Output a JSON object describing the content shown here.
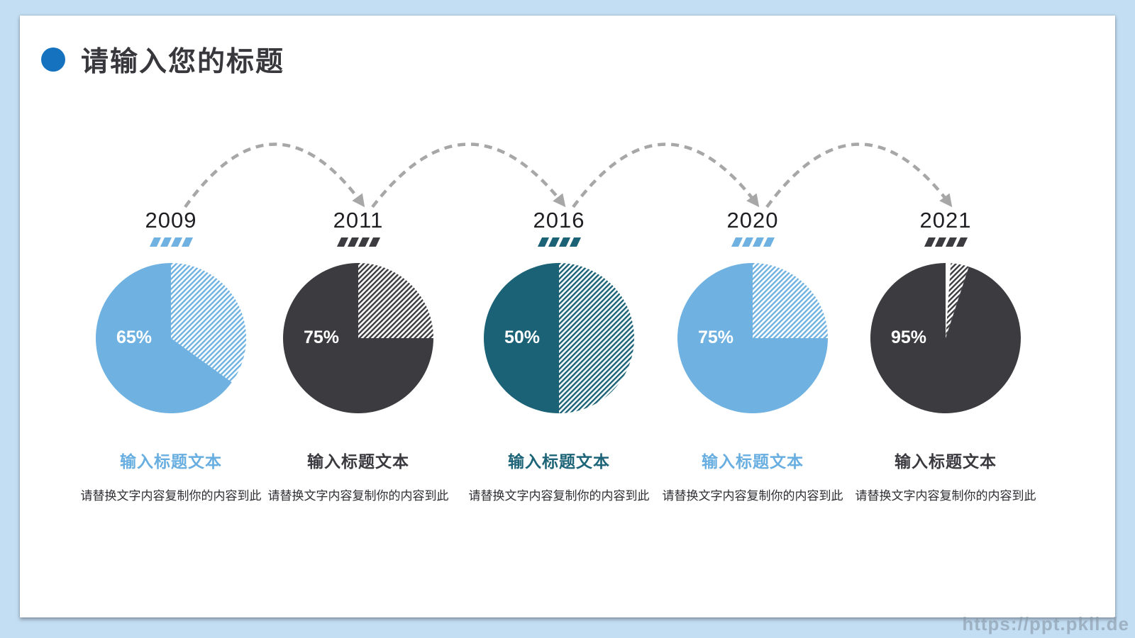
{
  "slide": {
    "background_color": "#C3DEF3",
    "surface_color": "#FFFFFF",
    "watermark": "https://ppt.pkll.de"
  },
  "header": {
    "title": "请输入您的标题",
    "bullet_color": "#1472BF",
    "title_color": "#38373C"
  },
  "chart_data": {
    "type": "pie",
    "title": "请输入您的标题",
    "categories": [
      "2009",
      "2011",
      "2016",
      "2020",
      "2021"
    ],
    "values": [
      65,
      75,
      50,
      75,
      95
    ],
    "percent_label_color": "#FFFFFF",
    "hatch_background": "#FFFFFF",
    "connector_color": "#A7A7A7",
    "items": [
      {
        "year": "2009",
        "value": 65,
        "color": "#6FB2E1",
        "subtitle_color": "#68AEE0",
        "subtitle": "输入标题文本",
        "description": "请替换文字内容复制你的内容到此"
      },
      {
        "year": "2011",
        "value": 75,
        "color": "#3C3B40",
        "subtitle_color": "#3A393E",
        "subtitle": "输入标题文本",
        "description": "请替换文字内容复制你的内容到此"
      },
      {
        "year": "2016",
        "value": 50,
        "color": "#1B6276",
        "subtitle_color": "#1D6478",
        "subtitle": "输入标题文本",
        "description": "请替换文字内容复制你的内容到此"
      },
      {
        "year": "2020",
        "value": 75,
        "color": "#6FB2E1",
        "subtitle_color": "#68AEE0",
        "subtitle": "输入标题文本",
        "description": "请替换文字内容复制你的内容到此"
      },
      {
        "year": "2021",
        "value": 95,
        "color": "#3C3B40",
        "subtitle_color": "#3A393E",
        "subtitle": "输入标题文本",
        "description": "请替换文字内容复制你的内容到此"
      }
    ]
  }
}
